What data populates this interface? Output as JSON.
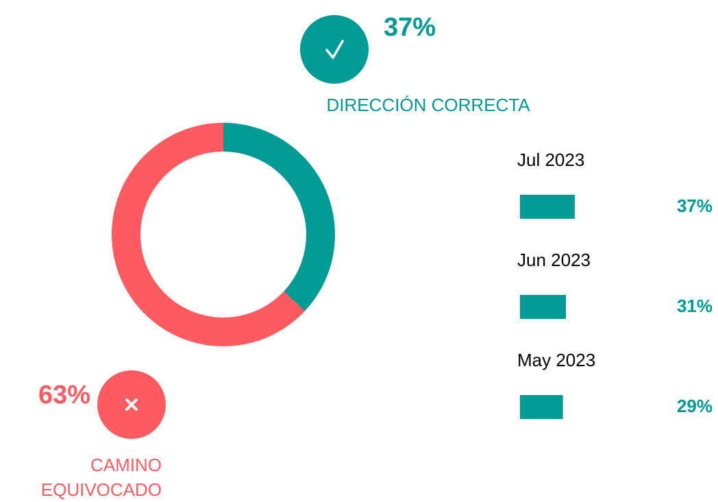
{
  "chart_data": [
    {
      "type": "pie",
      "donut": true,
      "categories": [
        "DIRECCIÓN CORRECTA",
        "CAMINO EQUIVOCADO"
      ],
      "values": [
        37,
        63
      ],
      "value_labels": [
        "37%",
        "63%"
      ],
      "colors": [
        "#009b95",
        "#ff5a5f"
      ]
    },
    {
      "type": "bar",
      "orientation": "horizontal",
      "categories": [
        "Jul 2023",
        "Jun 2023",
        "May 2023"
      ],
      "values": [
        37,
        31,
        29
      ],
      "value_labels": [
        "37%",
        "31%",
        "29%"
      ],
      "color": "#009b95"
    }
  ]
}
